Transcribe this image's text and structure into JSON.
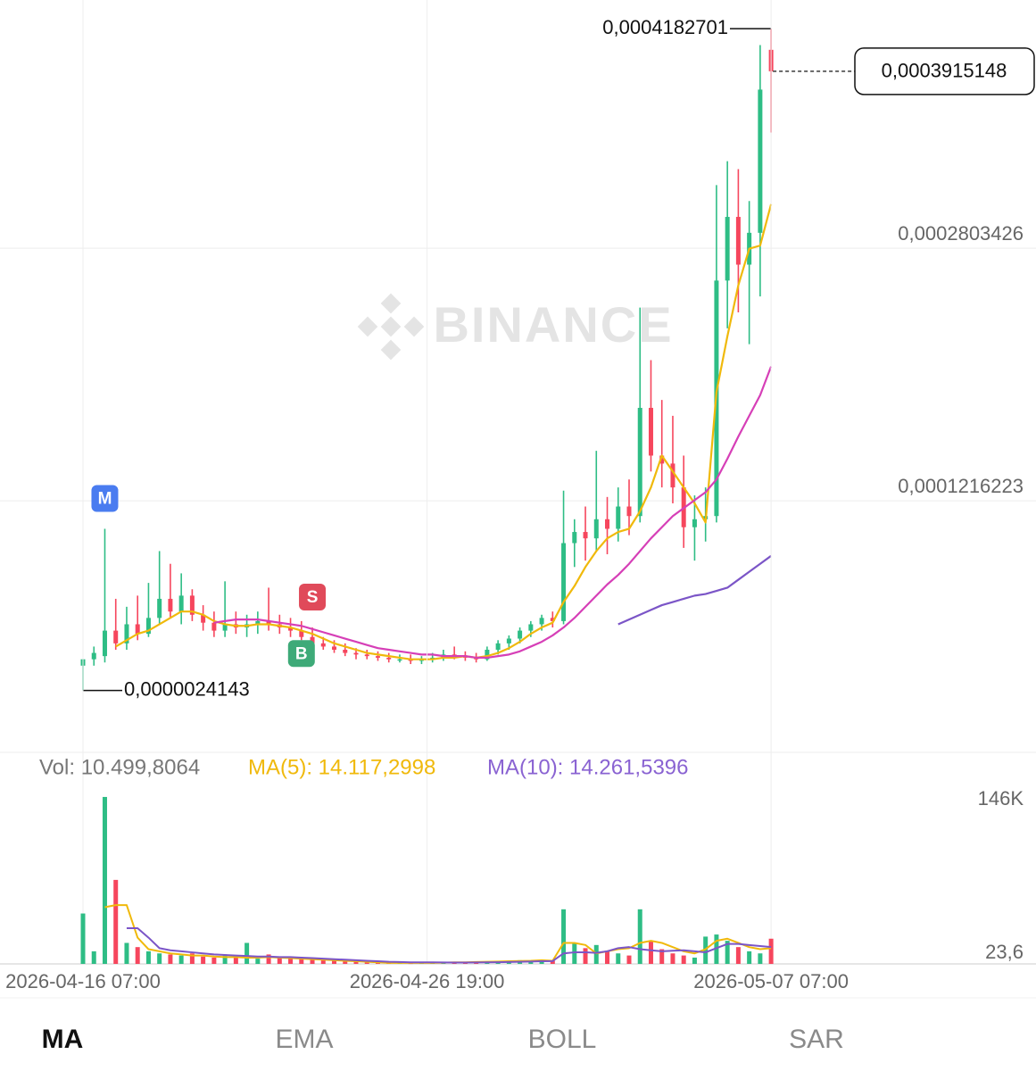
{
  "chart_data": [
    {
      "type": "candlestick",
      "open": [
        1.8e-05,
        2.2e-05,
        2.4e-05,
        4e-05,
        3.2e-05,
        4.4e-05,
        3.8e-05,
        4.8e-05,
        6e-05,
        5.2e-05,
        6.2e-05,
        5e-05,
        4.5e-05,
        4e-05,
        4.4e-05,
        4.2e-05,
        4.4e-05,
        4.6e-05,
        4.4e-05,
        4.2e-05,
        4e-05,
        3.6e-05,
        3.2e-05,
        3e-05,
        2.8e-05,
        2.6e-05,
        2.5e-05,
        2.4e-05,
        2.3e-05,
        2.2e-05,
        2.2e-05,
        2.1e-05,
        2.2e-05,
        2.3e-05,
        2.5e-05,
        2.4e-05,
        2.3e-05,
        2.2e-05,
        2.8e-05,
        3.2e-05,
        3.5e-05,
        4e-05,
        4.4e-05,
        4.8e-05,
        4.6e-05,
        9.5e-05,
        0.000102,
        9.8e-05,
        0.00011,
        0.000104,
        0.000118,
        0.000112,
        0.00018,
        0.00015,
        0.000145,
        0.00013,
        0.000105,
        0.00011,
        0.000112,
        0.00026,
        0.0003,
        0.00027,
        0.00029,
        0.000405
      ],
      "high": [
        2.2e-05,
        3e-05,
        0.000104,
        6e-05,
        5.5e-05,
        6.2e-05,
        7e-05,
        9e-05,
        8.2e-05,
        7.6e-05,
        6.6e-05,
        5.6e-05,
        5.2e-05,
        7.1e-05,
        5.2e-05,
        5e-05,
        5.2e-05,
        6.7e-05,
        5e-05,
        4.8e-05,
        4.6e-05,
        4.2e-05,
        3.6e-05,
        3.4e-05,
        3.2e-05,
        2.9e-05,
        2.8e-05,
        2.7e-05,
        2.6e-05,
        2.5e-05,
        2.5e-05,
        2.4e-05,
        2.6e-05,
        2.8e-05,
        3e-05,
        2.7e-05,
        2.6e-05,
        3e-05,
        3.4e-05,
        3.7e-05,
        4.2e-05,
        4.6e-05,
        5e-05,
        5.2e-05,
        0.000128,
        0.00011,
        0.000118,
        0.000153,
        0.000124,
        0.00013,
        0.000135,
        0.000243,
        0.00021,
        0.000185,
        0.000175,
        0.00015,
        0.000125,
        0.00013,
        0.00032,
        0.000335,
        0.00033,
        0.00031,
        0.000408,
        0.0004182701
      ],
      "low": [
        2.4143e-06,
        1.8e-05,
        2e-05,
        2.8e-05,
        2.8e-05,
        3.4e-05,
        3.6e-05,
        4.4e-05,
        4.8e-05,
        4.4e-05,
        4.6e-05,
        4e-05,
        3.6e-05,
        3.6e-05,
        3.8e-05,
        3.6e-05,
        3.8e-05,
        4e-05,
        3.8e-05,
        3.6e-05,
        3.4e-05,
        3e-05,
        2.8e-05,
        2.6e-05,
        2.4e-05,
        2.2e-05,
        2.2e-05,
        2.1e-05,
        2e-05,
        2e-05,
        1.9e-05,
        1.9e-05,
        2e-05,
        2.1e-05,
        2.2e-05,
        2.1e-05,
        2e-05,
        2.1e-05,
        2.5e-05,
        2.8e-05,
        3.2e-05,
        3.6e-05,
        4e-05,
        4.2e-05,
        4.4e-05,
        8e-05,
        8.4e-05,
        9e-05,
        8.8e-05,
        9.6e-05,
        0.0001,
        0.000108,
        0.00014,
        0.00013,
        0.00012,
        9.2e-05,
        8.4e-05,
        9.6e-05,
        0.000108,
        0.00023,
        0.00024,
        0.00022,
        0.00025,
        0.000353
      ],
      "close": [
        2.2e-05,
        2.6e-05,
        4e-05,
        3.2e-05,
        4.4e-05,
        3.8e-05,
        4.8e-05,
        6e-05,
        5.2e-05,
        6.2e-05,
        5e-05,
        4.5e-05,
        4e-05,
        4.4e-05,
        4.2e-05,
        4.4e-05,
        4.6e-05,
        4.4e-05,
        4.2e-05,
        4e-05,
        3.6e-05,
        3.2e-05,
        3e-05,
        2.8e-05,
        2.6e-05,
        2.5e-05,
        2.4e-05,
        2.3e-05,
        2.2e-05,
        2.2e-05,
        2.1e-05,
        2.2e-05,
        2.3e-05,
        2.5e-05,
        2.4e-05,
        2.3e-05,
        2.2e-05,
        2.8e-05,
        3.2e-05,
        3.5e-05,
        4e-05,
        4.4e-05,
        4.8e-05,
        4.6e-05,
        9.5e-05,
        0.000102,
        9.8e-05,
        0.00011,
        0.000104,
        0.000118,
        0.000112,
        0.00018,
        0.00015,
        0.000145,
        0.00013,
        0.000105,
        0.00011,
        0.000112,
        0.00026,
        0.0003,
        0.00027,
        0.00029,
        0.00038,
        0.0003915148
      ],
      "up_color": "#2ebd85",
      "down_color": "#f6465d",
      "lines": [
        {
          "color": "#f0b90b",
          "values": [
            null,
            null,
            null,
            3e-05,
            3.4e-05,
            3.8e-05,
            4e-05,
            4.4e-05,
            4.8e-05,
            5.2e-05,
            5.2e-05,
            5e-05,
            4.6e-05,
            4.4e-05,
            4.3e-05,
            4.3e-05,
            4.4e-05,
            4.4e-05,
            4.3e-05,
            4.2e-05,
            4e-05,
            3.8e-05,
            3.5e-05,
            3.2e-05,
            3e-05,
            2.8e-05,
            2.6e-05,
            2.5e-05,
            2.4e-05,
            2.3e-05,
            2.2e-05,
            2.2e-05,
            2.2e-05,
            2.3e-05,
            2.3e-05,
            2.4e-05,
            2.3e-05,
            2.4e-05,
            2.6e-05,
            2.9e-05,
            3.3e-05,
            3.8e-05,
            4.2e-05,
            4.5e-05,
            5.8e-05,
            6.8e-05,
            8e-05,
            9e-05,
            9.8e-05,
            0.000102,
            0.000104,
            0.000115,
            0.00013,
            0.00015,
            0.00014,
            0.00013,
            0.00012,
            0.000108,
            0.00019,
            0.000225,
            0.000257,
            0.00028,
            0.000282,
            0.000308
          ]
        },
        {
          "color": "#d63fb7",
          "values": [
            null,
            null,
            null,
            null,
            null,
            null,
            null,
            null,
            null,
            null,
            null,
            null,
            4.5e-05,
            4.6e-05,
            4.7e-05,
            4.7e-05,
            4.7e-05,
            4.6e-05,
            4.5e-05,
            4.4e-05,
            4.3e-05,
            4.1e-05,
            3.9e-05,
            3.7e-05,
            3.5e-05,
            3.3e-05,
            3.1e-05,
            2.9e-05,
            2.8e-05,
            2.7e-05,
            2.6e-05,
            2.5e-05,
            2.5e-05,
            2.4e-05,
            2.4e-05,
            2.4e-05,
            2.3e-05,
            2.3e-05,
            2.4e-05,
            2.5e-05,
            2.7e-05,
            3e-05,
            3.3e-05,
            3.7e-05,
            4.2e-05,
            4.8e-05,
            5.5e-05,
            6.2e-05,
            6.9e-05,
            7.5e-05,
            8.2e-05,
            9e-05,
            9.8e-05,
            0.000105,
            0.000112,
            0.000117,
            0.000122,
            0.000127,
            0.000135,
            0.000148,
            0.000162,
            0.000175,
            0.000188,
            0.000206
          ]
        },
        {
          "color": "#7b55c7",
          "values": [
            null,
            null,
            null,
            null,
            null,
            null,
            null,
            null,
            null,
            null,
            null,
            null,
            null,
            null,
            null,
            null,
            null,
            null,
            null,
            null,
            null,
            null,
            null,
            null,
            null,
            null,
            null,
            null,
            null,
            null,
            null,
            null,
            null,
            null,
            null,
            null,
            null,
            null,
            null,
            null,
            null,
            null,
            null,
            null,
            null,
            null,
            null,
            null,
            null,
            4.4e-05,
            4.7e-05,
            5e-05,
            5.3e-05,
            5.6e-05,
            5.8e-05,
            6e-05,
            6.2e-05,
            6.3e-05,
            6.5e-05,
            6.7e-05,
            7.2e-05,
            7.7e-05,
            8.2e-05,
            8.7e-05
          ]
        }
      ],
      "xlim": [
        -7.598,
        87.255
      ],
      "ylim": [
        -3.65e-05,
        0.0004363
      ],
      "yticks": [
        {
          "value": 0.0002803426,
          "label": "0,0002803426"
        },
        {
          "value": 0.0001216223,
          "label": "0,0001216223"
        }
      ],
      "grid": true,
      "max_label": {
        "value": 0.0004182701,
        "label": "0,0004182701"
      },
      "min_label": {
        "value": 2.4143e-06,
        "label": "0,0000024143"
      },
      "last_price": {
        "value": 0.0003915148,
        "label": "0,0003915148"
      },
      "markers": [
        {
          "label": "M",
          "x": 2,
          "position": "above",
          "color": "#4a7cf0"
        },
        {
          "label": "S",
          "x": 21,
          "position": "above",
          "color": "#e04a5a"
        },
        {
          "label": "B",
          "x": 20,
          "position": "below",
          "color": "#3eaa78"
        }
      ],
      "watermark": "BINANCE"
    },
    {
      "type": "bar",
      "header": [
        {
          "text": "Vol: 10.499,8064",
          "color": "#777777"
        },
        {
          "text": "MA(5): 14.117,2998",
          "color": "#f0b90b"
        },
        {
          "text": "MA(10): 14.261,5396",
          "color": "#8a63d2"
        }
      ],
      "values": [
        48000,
        12000,
        159000,
        80000,
        20000,
        16000,
        12000,
        10000,
        9000,
        8000,
        10000,
        7000,
        6000,
        8000,
        6000,
        20000,
        5000,
        9000,
        6000,
        5000,
        5000,
        4000,
        4000,
        3000,
        3000,
        2500,
        2000,
        1500,
        1200,
        1000,
        800,
        900,
        1000,
        1200,
        1500,
        1200,
        1500,
        2000,
        2500,
        3000,
        3500,
        3000,
        4000,
        3000,
        52000,
        20000,
        15000,
        18000,
        12000,
        10000,
        8000,
        52000,
        22000,
        14000,
        10000,
        8000,
        6000,
        26000,
        28000,
        22000,
        16000,
        12000,
        10000,
        24000
      ],
      "lines": [
        {
          "color": "#f0b90b",
          "values": [
            null,
            null,
            54000,
            56000,
            56000,
            25000,
            14000,
            12000,
            10000,
            9000,
            8000,
            8000,
            7000,
            6500,
            6500,
            6000,
            6000,
            6500,
            6000,
            5500,
            5000,
            4500,
            4000,
            3500,
            3000,
            2500,
            2000,
            1500,
            1000,
            1000,
            1000,
            1000,
            1000,
            1200,
            1500,
            1500,
            1800,
            2000,
            2200,
            2500,
            2800,
            3000,
            3500,
            3000,
            20000,
            20000,
            18000,
            10000,
            12000,
            14000,
            15000,
            20000,
            22000,
            20000,
            16000,
            12000,
            10000,
            14000,
            22000,
            24000,
            20000,
            16000,
            14000,
            15000
          ]
        },
        {
          "color": "#7b55c7",
          "values": [
            null,
            null,
            null,
            null,
            34000,
            34000,
            25000,
            15000,
            13000,
            12000,
            11000,
            10000,
            9000,
            8500,
            8000,
            7500,
            7000,
            7000,
            6500,
            6500,
            6000,
            5500,
            5000,
            4500,
            4000,
            3500,
            3000,
            2500,
            2000,
            1800,
            1500,
            1500,
            1500,
            1400,
            1300,
            1300,
            1400,
            1500,
            1600,
            1800,
            2000,
            2200,
            2500,
            2700,
            10000,
            11000,
            11000,
            10500,
            12000,
            15000,
            16000,
            14000,
            13000,
            12000,
            12500,
            13000,
            12000,
            11000,
            15000,
            19000,
            19000,
            18000,
            17000,
            16000
          ]
        }
      ],
      "xlim": [
        -7.598,
        87.255
      ],
      "ylim": [
        0,
        170000
      ],
      "yticks": [
        {
          "value": 146000,
          "label": "146K"
        },
        {
          "value": 23.6,
          "label": "23,6"
        }
      ],
      "xticks": [
        {
          "value": 0,
          "label": "2026-04-16 07:00"
        },
        {
          "value": 31.5,
          "label": "2026-04-26 19:00"
        },
        {
          "value": 63,
          "label": "2026-05-07 07:00"
        }
      ]
    }
  ],
  "tabs": [
    {
      "label": "MA",
      "active": true
    },
    {
      "label": "EMA",
      "active": false
    },
    {
      "label": "BOLL",
      "active": false
    },
    {
      "label": "SAR",
      "active": false
    }
  ]
}
